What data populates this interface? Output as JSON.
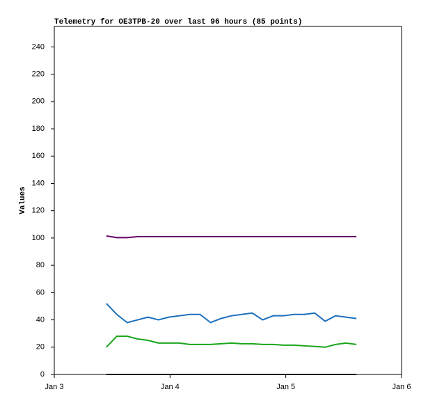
{
  "chart_data": {
    "type": "line",
    "title": "Telemetry for OE3TPB-20 over last 96 hours (85 points)",
    "y_label": "Values",
    "x": [
      3.45,
      3.54,
      3.63,
      3.72,
      3.81,
      3.9,
      3.99,
      4.08,
      4.17,
      4.26,
      4.35,
      4.44,
      4.53,
      4.62,
      4.71,
      4.8,
      4.89,
      4.98,
      5.07,
      5.16,
      5.25,
      5.34,
      5.43,
      5.52,
      5.61
    ],
    "series": [
      {
        "color": "#660066",
        "values": [
          101.5,
          100.3,
          100.3,
          101,
          101,
          101,
          101,
          101,
          101,
          101,
          101,
          101,
          101,
          101,
          101,
          101,
          101,
          101,
          101,
          101,
          101,
          101,
          101,
          101,
          101
        ]
      },
      {
        "color": "#1b6fbd",
        "values": [
          52,
          44,
          38,
          40,
          42,
          40,
          42,
          43,
          44,
          44,
          38,
          41,
          43,
          44,
          45,
          40,
          43,
          43,
          44,
          44,
          45,
          39,
          43,
          42,
          41
        ]
      },
      {
        "color": "#1aa51a",
        "values": [
          20,
          28,
          28,
          26,
          25,
          23,
          23,
          23,
          22,
          22,
          22,
          22.5,
          23,
          22.5,
          22.5,
          22,
          22,
          21.5,
          21.5,
          21,
          20.5,
          20,
          22,
          23,
          22
        ]
      },
      {
        "color": "#000000",
        "values": [
          0,
          0,
          0,
          0,
          0,
          0,
          0,
          0,
          0,
          0,
          0,
          0,
          0,
          0,
          0,
          0,
          0,
          0,
          0,
          0,
          0,
          0,
          0,
          0,
          0
        ]
      }
    ],
    "xlim": [
      3,
      6
    ],
    "xticks": [
      {
        "value": 3,
        "label": "Jan 3"
      },
      {
        "value": 4,
        "label": "Jan 4"
      },
      {
        "value": 5,
        "label": "Jan 5"
      },
      {
        "value": 6,
        "label": "Jan 6"
      }
    ],
    "ylim": [
      0,
      255
    ],
    "yticks": [
      0,
      20,
      40,
      60,
      80,
      100,
      120,
      140,
      160,
      180,
      200,
      220,
      240
    ],
    "grid": false
  }
}
